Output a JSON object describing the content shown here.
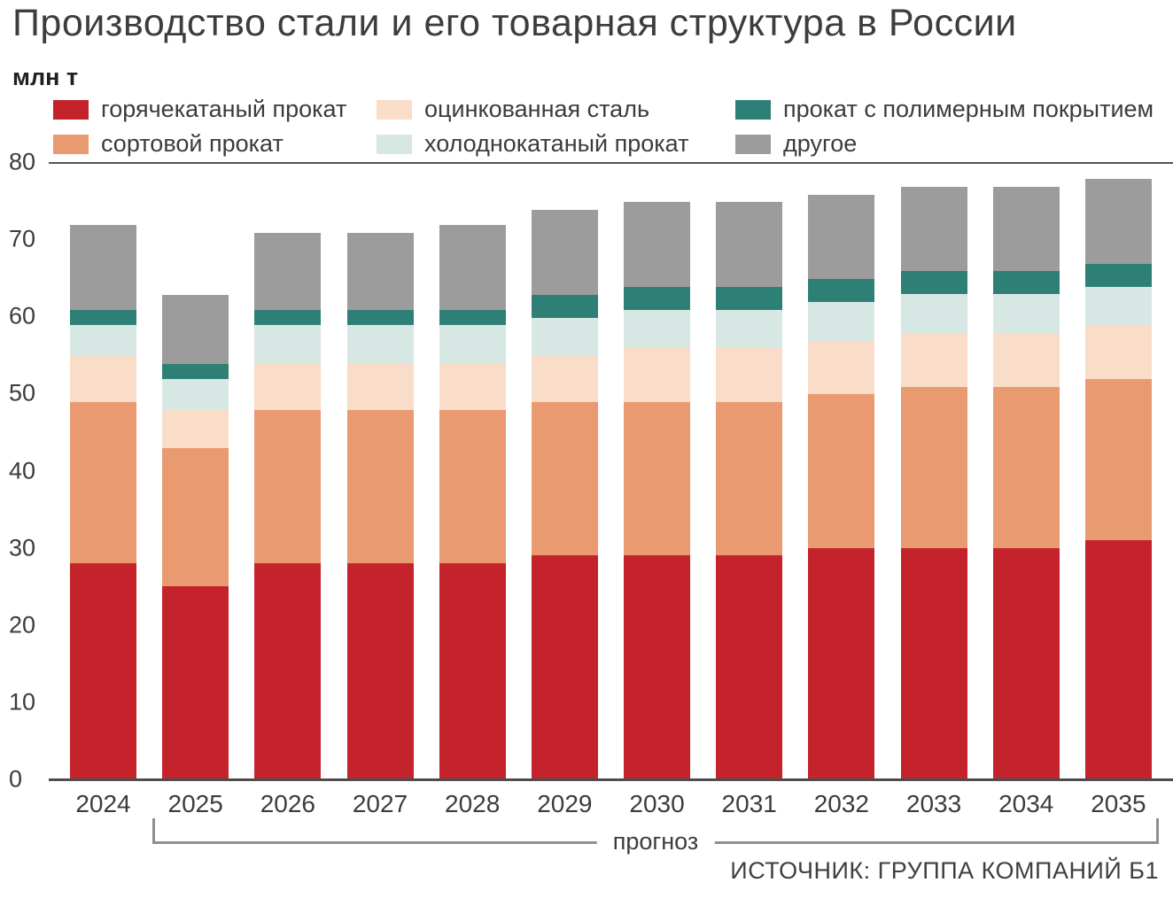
{
  "title": "Производство стали и его товарная структура в России",
  "ylabel": "млн т",
  "forecast_label": "прогноз",
  "source": "ИСТОЧНИК: ГРУППА КОМПАНИЙ Б1",
  "chart_data": {
    "type": "bar",
    "stacked": true,
    "title": "Производство стали и его товарная структура в России",
    "ylabel": "млн т",
    "ylim": [
      0,
      80
    ],
    "yticks": [
      0,
      10,
      20,
      30,
      40,
      50,
      60,
      70,
      80
    ],
    "grid": false,
    "legend_position": "top",
    "legend_order": [
      0,
      2,
      4,
      1,
      3,
      5
    ],
    "categories": [
      "2024",
      "2025",
      "2026",
      "2027",
      "2028",
      "2029",
      "2030",
      "2031",
      "2032",
      "2033",
      "2034",
      "2035"
    ],
    "series": [
      {
        "name": "горячекатаный прокат",
        "color": "#c4232b",
        "values": [
          28,
          25,
          28,
          28,
          28,
          29,
          29,
          29,
          30,
          30,
          30,
          31
        ]
      },
      {
        "name": "сортовой прокат",
        "color": "#e99a70",
        "values": [
          21,
          18,
          20,
          20,
          20,
          20,
          20,
          20,
          20,
          21,
          21,
          21
        ]
      },
      {
        "name": "оцинкованная сталь",
        "color": "#f9ddc8",
        "values": [
          6,
          5,
          6,
          6,
          6,
          6,
          7,
          7,
          7,
          7,
          7,
          7
        ]
      },
      {
        "name": "холоднокатаный прокат",
        "color": "#d7e7e4",
        "values": [
          4,
          4,
          5,
          5,
          5,
          5,
          5,
          5,
          5,
          5,
          5,
          5
        ]
      },
      {
        "name": "прокат с полимерным покрытием",
        "color": "#2e8076",
        "values": [
          2,
          2,
          2,
          2,
          2,
          3,
          3,
          3,
          3,
          3,
          3,
          3
        ]
      },
      {
        "name": "другое",
        "color": "#9c9c9c",
        "values": [
          11,
          9,
          10,
          10,
          11,
          11,
          11,
          11,
          11,
          11,
          11,
          11
        ]
      }
    ],
    "totals": [
      72,
      63,
      71,
      71,
      72,
      74,
      75,
      75,
      76,
      77,
      77,
      78
    ],
    "forecast_range": [
      "2025",
      "2035"
    ]
  }
}
